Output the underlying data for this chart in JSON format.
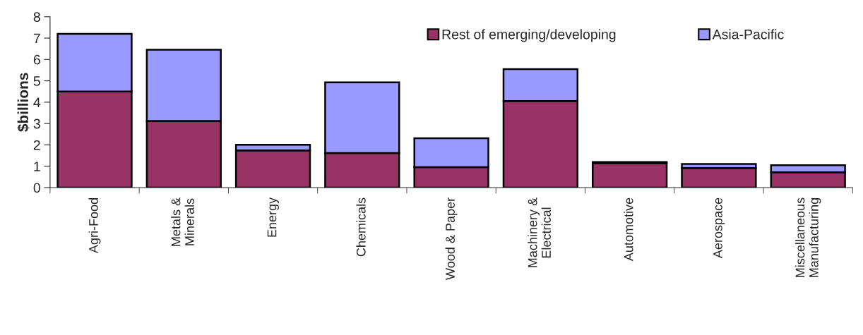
{
  "chart_data": {
    "type": "bar",
    "ylabel": "$billions",
    "stacked": true,
    "categories": [
      "Agri-Food",
      "Metals &\nMinerals",
      "Energy",
      "Chemicals",
      "Wood & Paper",
      "Machinery &\nElectrical",
      "Automotive",
      "Aerospace",
      "Miscellaneous\nManufacturing"
    ],
    "series": [
      {
        "name": "Rest of emerging/developing",
        "color": "#993366",
        "values": [
          4.5,
          3.12,
          1.74,
          1.62,
          0.96,
          4.05,
          1.15,
          0.92,
          0.72
        ]
      },
      {
        "name": "Asia-Pacific",
        "color": "#9999ff",
        "values": [
          2.7,
          3.34,
          0.27,
          3.31,
          1.35,
          1.5,
          0.05,
          0.19,
          0.33
        ]
      }
    ],
    "ylim": [
      0,
      8
    ],
    "yticks": [
      0,
      1,
      2,
      3,
      4,
      5,
      6,
      7,
      8
    ],
    "grid": false,
    "legend": "top right"
  }
}
